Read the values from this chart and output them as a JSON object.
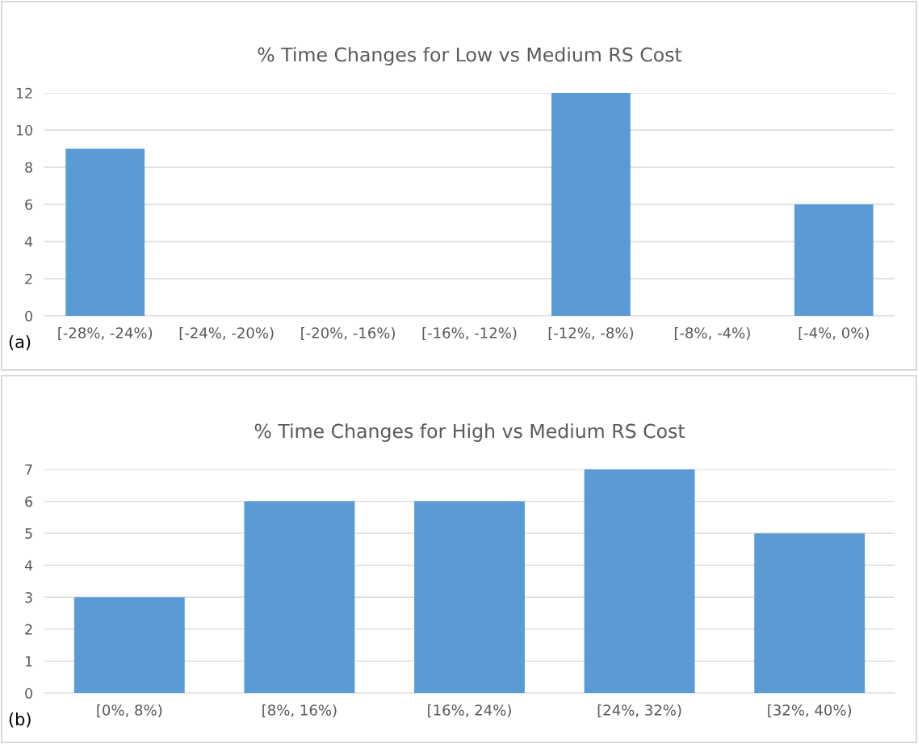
{
  "chart_data": [
    {
      "type": "bar",
      "title": "% Time Changes for Low vs Medium RS Cost",
      "categories": [
        "[-28%, -24%)",
        "[-24%, -20%)",
        "[-20%, -16%)",
        "[-16%, -12%)",
        "[-12%, -8%)",
        "[-8%, -4%)",
        "[-4%, 0%)"
      ],
      "values": [
        9,
        0,
        0,
        0,
        12,
        0,
        6
      ],
      "color": "#5b9bd5",
      "ylim": [
        0,
        12
      ],
      "yticks": [
        0,
        2,
        4,
        6,
        8,
        10,
        12
      ],
      "grid": "y",
      "annotations": [
        "(a)"
      ]
    },
    {
      "type": "bar",
      "title": "% Time Changes for High vs Medium RS Cost",
      "categories": [
        "[0%, 8%)",
        "[8%, 16%)",
        "[16%, 24%)",
        "[24%, 32%)",
        "[32%, 40%)"
      ],
      "values": [
        3,
        6,
        6,
        7,
        5
      ],
      "color": "#5b9bd5",
      "ylim": [
        0,
        7
      ],
      "yticks": [
        0,
        1,
        2,
        3,
        4,
        5,
        6,
        7
      ],
      "grid": "y",
      "annotations": [
        "(b)"
      ]
    }
  ]
}
